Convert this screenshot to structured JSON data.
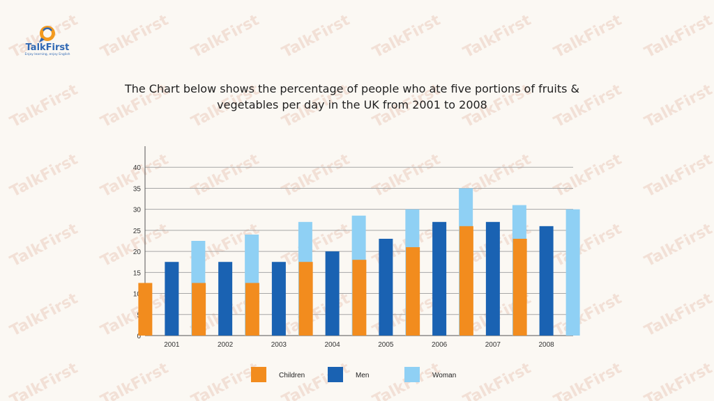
{
  "logo": {
    "name": "TalkFirst",
    "tagline": "Enjoy learning, enjoy English"
  },
  "watermark_text": "TalkFirst",
  "colors": {
    "children": "#f28c1e",
    "men": "#1a62b2",
    "woman": "#8fd0f4",
    "gridline": "#a6a6a6",
    "axis": "#555555"
  },
  "chart_data": {
    "type": "bar",
    "title": "The Chart below shows the percentage of people who ate five portions of fruits & vegetables per day in the UK from 2001 to 2008",
    "categories": [
      "2001",
      "2002",
      "2003",
      "2004",
      "2005",
      "2006",
      "2007",
      "2008"
    ],
    "series": [
      {
        "name": "Children",
        "color": "#f28c1e",
        "values": [
          12.5,
          12.5,
          12.5,
          17.5,
          18,
          21,
          26,
          23
        ]
      },
      {
        "name": "Men",
        "color": "#1a62b2",
        "values": [
          17.5,
          17.5,
          17.5,
          20,
          23,
          27,
          27,
          26
        ]
      },
      {
        "name": "Woman",
        "color": "#8fd0f4",
        "values": [
          22.5,
          24,
          27,
          28.5,
          30,
          35,
          31,
          30
        ]
      }
    ],
    "yticks": [
      0,
      5,
      10,
      15,
      20,
      25,
      30,
      35,
      40
    ],
    "ylim": [
      0,
      45
    ],
    "xlabel": "",
    "ylabel": "",
    "grid": true,
    "legend": "bottom"
  }
}
